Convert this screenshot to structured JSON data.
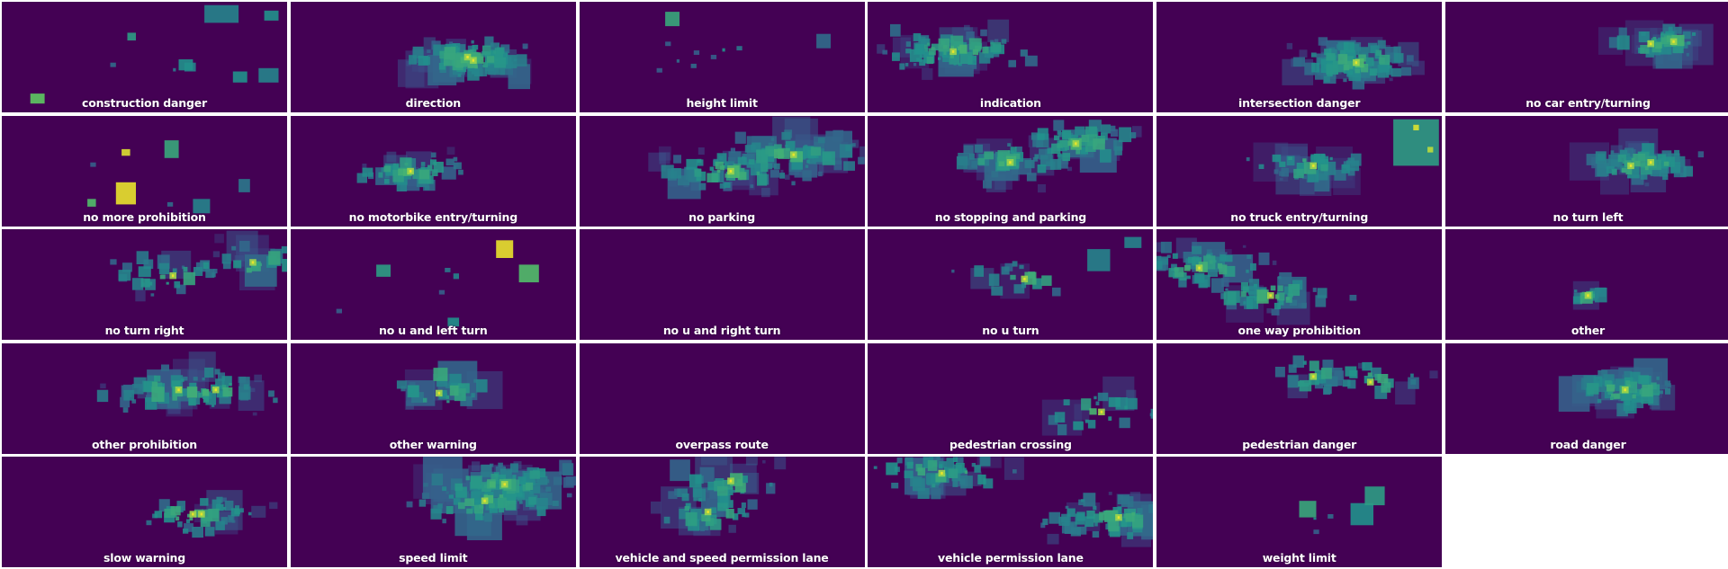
{
  "figure": {
    "background": "#ffffff",
    "panel_background": "#440154",
    "colormap": "viridis",
    "colormap_stops": [
      "#440154",
      "#3b528b",
      "#21918c",
      "#5ec962",
      "#fde725"
    ],
    "layout": {
      "rows": 5,
      "cols": 6
    }
  },
  "chart_data": {
    "type": "heatmap",
    "description_kind": "small multiples of bounding-box density heatmaps, one per sign category",
    "panels": [
      {
        "label": "construction danger",
        "boxes": [
          [
            0.71,
            0.03,
            0.12,
            0.16,
            0.45
          ],
          [
            0.92,
            0.08,
            0.05,
            0.09,
            0.5
          ],
          [
            0.44,
            0.28,
            0.03,
            0.07,
            0.55
          ],
          [
            0.62,
            0.52,
            0.05,
            0.1,
            0.5
          ],
          [
            0.64,
            0.55,
            0.04,
            0.08,
            0.45
          ],
          [
            0.1,
            0.83,
            0.05,
            0.09,
            0.75
          ],
          [
            0.81,
            0.63,
            0.05,
            0.1,
            0.5
          ],
          [
            0.9,
            0.6,
            0.07,
            0.13,
            0.45
          ],
          [
            0.38,
            0.55,
            0.02,
            0.04,
            0.35
          ],
          [
            0.6,
            0.6,
            0.01,
            0.03,
            0.4
          ]
        ]
      },
      {
        "label": "direction",
        "seed": 11,
        "n": 130,
        "hot": [
          [
            0.62,
            0.5
          ],
          [
            0.64,
            0.53
          ]
        ],
        "spread": [
          0.2,
          0.15
        ]
      },
      {
        "label": "height limit",
        "boxes": [
          [
            0.3,
            0.09,
            0.05,
            0.13,
            0.6
          ],
          [
            0.83,
            0.29,
            0.05,
            0.13,
            0.35
          ],
          [
            0.3,
            0.36,
            0.02,
            0.04,
            0.3
          ],
          [
            0.4,
            0.44,
            0.02,
            0.04,
            0.3
          ],
          [
            0.39,
            0.56,
            0.02,
            0.04,
            0.35
          ],
          [
            0.55,
            0.4,
            0.02,
            0.04,
            0.4
          ],
          [
            0.46,
            0.48,
            0.02,
            0.04,
            0.3
          ],
          [
            0.27,
            0.6,
            0.02,
            0.04,
            0.3
          ],
          [
            0.5,
            0.42,
            0.01,
            0.03,
            0.5
          ],
          [
            0.34,
            0.52,
            0.01,
            0.03,
            0.35
          ]
        ]
      },
      {
        "label": "indication",
        "seed": 21,
        "n": 90,
        "hot": [
          [
            0.3,
            0.45
          ]
        ],
        "spread": [
          0.25,
          0.18
        ]
      },
      {
        "label": "intersection danger",
        "seed": 31,
        "n": 110,
        "hot": [
          [
            0.7,
            0.55
          ]
        ],
        "spread": [
          0.2,
          0.18
        ]
      },
      {
        "label": "no car entry/turning",
        "seed": 41,
        "n": 60,
        "hot": [
          [
            0.72,
            0.38
          ],
          [
            0.8,
            0.36
          ]
        ],
        "spread": [
          0.12,
          0.12
        ]
      },
      {
        "label": "no more prohibition",
        "boxes": [
          [
            0.42,
            0.3,
            0.03,
            0.06,
            0.95
          ],
          [
            0.57,
            0.22,
            0.05,
            0.16,
            0.6
          ],
          [
            0.4,
            0.6,
            0.07,
            0.2,
            0.97
          ],
          [
            0.3,
            0.75,
            0.03,
            0.07,
            0.7
          ],
          [
            0.67,
            0.75,
            0.06,
            0.13,
            0.45
          ],
          [
            0.83,
            0.57,
            0.04,
            0.12,
            0.4
          ],
          [
            0.31,
            0.42,
            0.02,
            0.04,
            0.3
          ],
          [
            0.58,
            0.78,
            0.02,
            0.04,
            0.35
          ]
        ]
      },
      {
        "label": "no motorbike entry/turning",
        "seed": 61,
        "n": 55,
        "hot": [
          [
            0.42,
            0.5
          ]
        ],
        "spread": [
          0.18,
          0.15
        ]
      },
      {
        "label": "no parking",
        "seed": 71,
        "n": 150,
        "hot": [
          [
            0.53,
            0.5
          ],
          [
            0.75,
            0.35
          ]
        ],
        "spread": [
          0.23,
          0.17
        ]
      },
      {
        "label": "no stopping and parking",
        "seed": 81,
        "n": 110,
        "hot": [
          [
            0.73,
            0.25
          ],
          [
            0.5,
            0.42
          ]
        ],
        "spread": [
          0.2,
          0.18
        ]
      },
      {
        "label": "no truck entry/turning",
        "seed": 91,
        "n": 50,
        "hot": [
          [
            0.55,
            0.45
          ]
        ],
        "spread": [
          0.2,
          0.15
        ],
        "extra": [
          [
            0.83,
            0.03,
            0.16,
            0.42,
            0.55
          ],
          [
            0.9,
            0.08,
            0.02,
            0.05,
            0.95
          ],
          [
            0.95,
            0.28,
            0.02,
            0.05,
            0.9
          ]
        ]
      },
      {
        "label": "no turn left",
        "seed": 101,
        "n": 80,
        "hot": [
          [
            0.65,
            0.45
          ],
          [
            0.72,
            0.42
          ]
        ],
        "spread": [
          0.18,
          0.15
        ]
      },
      {
        "label": "no turn right",
        "seed": 111,
        "n": 55,
        "hot": [
          [
            0.88,
            0.3
          ],
          [
            0.6,
            0.42
          ]
        ],
        "spread": [
          0.2,
          0.18
        ]
      },
      {
        "label": "no u and left turn",
        "boxes": [
          [
            0.72,
            0.1,
            0.06,
            0.16,
            0.97
          ],
          [
            0.8,
            0.32,
            0.07,
            0.16,
            0.7
          ],
          [
            0.3,
            0.32,
            0.05,
            0.11,
            0.55
          ],
          [
            0.54,
            0.35,
            0.02,
            0.04,
            0.4
          ],
          [
            0.57,
            0.4,
            0.02,
            0.05,
            0.45
          ],
          [
            0.55,
            0.8,
            0.04,
            0.08,
            0.5
          ],
          [
            0.52,
            0.55,
            0.02,
            0.04,
            0.3
          ],
          [
            0.16,
            0.72,
            0.02,
            0.04,
            0.3
          ]
        ]
      },
      {
        "label": "no u and right turn",
        "boxes": []
      },
      {
        "label": "no u turn",
        "seed": 141,
        "n": 18,
        "hot": [
          [
            0.55,
            0.45
          ]
        ],
        "spread": [
          0.2,
          0.15
        ],
        "extra": [
          [
            0.77,
            0.18,
            0.08,
            0.2,
            0.45
          ],
          [
            0.9,
            0.07,
            0.06,
            0.1,
            0.45
          ]
        ]
      },
      {
        "label": "one way prohibition",
        "seed": 151,
        "n": 110,
        "hot": [
          [
            0.15,
            0.35
          ],
          [
            0.4,
            0.6
          ]
        ],
        "spread": [
          0.22,
          0.17
        ]
      },
      {
        "label": "other",
        "seed": 161,
        "n": 16,
        "hot": [
          [
            0.5,
            0.6
          ]
        ],
        "spread": [
          0.08,
          0.07
        ]
      },
      {
        "label": "other prohibition",
        "seed": 171,
        "n": 85,
        "hot": [
          [
            0.62,
            0.42
          ],
          [
            0.75,
            0.42
          ]
        ],
        "spread": [
          0.25,
          0.18
        ]
      },
      {
        "label": "other warning",
        "seed": 181,
        "n": 35,
        "hot": [
          [
            0.52,
            0.45
          ]
        ],
        "spread": [
          0.18,
          0.15
        ],
        "extra": [
          [
            0.5,
            0.22,
            0.05,
            0.12,
            0.6
          ]
        ]
      },
      {
        "label": "overpass route",
        "boxes": []
      },
      {
        "label": "pedestrian crossing",
        "seed": 201,
        "n": 25,
        "hot": [
          [
            0.82,
            0.62
          ]
        ],
        "spread": [
          0.2,
          0.18
        ]
      },
      {
        "label": "pedestrian danger",
        "seed": 211,
        "n": 40,
        "hot": [
          [
            0.55,
            0.3
          ],
          [
            0.75,
            0.35
          ]
        ],
        "spread": [
          0.18,
          0.18
        ]
      },
      {
        "label": "road danger",
        "seed": 221,
        "n": 85,
        "hot": [
          [
            0.63,
            0.42
          ]
        ],
        "spread": [
          0.2,
          0.17
        ]
      },
      {
        "label": "slow warning",
        "seed": 231,
        "n": 50,
        "hot": [
          [
            0.67,
            0.52
          ],
          [
            0.7,
            0.52
          ]
        ],
        "spread": [
          0.25,
          0.16
        ]
      },
      {
        "label": "speed limit",
        "seed": 241,
        "n": 170,
        "hot": [
          [
            0.68,
            0.4
          ],
          [
            0.75,
            0.25
          ]
        ],
        "spread": [
          0.25,
          0.18
        ]
      },
      {
        "label": "vehicle and speed permission lane",
        "seed": 251,
        "n": 70,
        "hot": [
          [
            0.53,
            0.22
          ],
          [
            0.45,
            0.5
          ]
        ],
        "spread": [
          0.18,
          0.2
        ]
      },
      {
        "label": "vehicle permission lane",
        "seed": 261,
        "n": 130,
        "hot": [
          [
            0.26,
            0.15
          ],
          [
            0.88,
            0.55
          ]
        ],
        "spread": [
          0.25,
          0.18
        ]
      },
      {
        "label": "weight limit",
        "boxes": [
          [
            0.5,
            0.4,
            0.06,
            0.15,
            0.6
          ],
          [
            0.55,
            0.55,
            0.01,
            0.02,
            0.5
          ],
          [
            0.68,
            0.42,
            0.08,
            0.2,
            0.5
          ],
          [
            0.73,
            0.27,
            0.07,
            0.17,
            0.55
          ],
          [
            0.6,
            0.52,
            0.02,
            0.04,
            0.35
          ],
          [
            0.55,
            0.66,
            0.02,
            0.04,
            0.3
          ]
        ]
      }
    ]
  }
}
